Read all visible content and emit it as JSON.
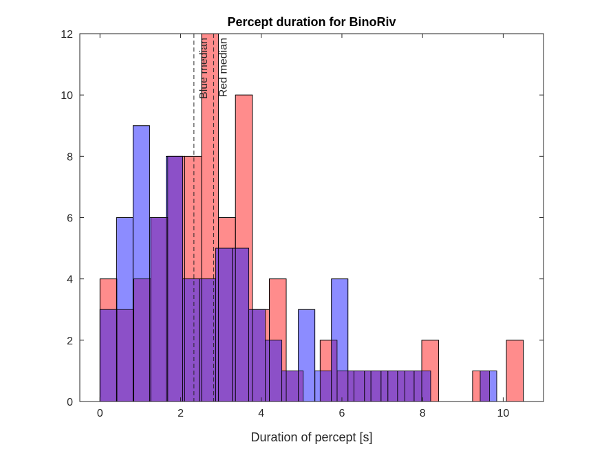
{
  "chart_data": {
    "type": "bar",
    "title": "Percept duration for BinoRiv",
    "xlabel": "Duration of percept [s]",
    "ylabel": "",
    "xlim": [
      -0.5,
      11
    ],
    "ylim": [
      0,
      12
    ],
    "xticks": [
      "0",
      "2",
      "4",
      "6",
      "8",
      "10"
    ],
    "yticks": [
      "0",
      "2",
      "4",
      "6",
      "8",
      "10",
      "12"
    ],
    "grid": false,
    "legend": "none",
    "overlap_color": "#8c50c8",
    "series": [
      {
        "color": "#ff8c8c",
        "bins": [
          {
            "x0": 0.0,
            "x1": 0.42,
            "count": 4
          },
          {
            "x0": 0.42,
            "x1": 0.84,
            "count": 3
          },
          {
            "x0": 0.84,
            "x1": 1.26,
            "count": 4
          },
          {
            "x0": 1.26,
            "x1": 1.68,
            "count": 6
          },
          {
            "x0": 1.68,
            "x1": 2.1,
            "count": 8
          },
          {
            "x0": 2.1,
            "x1": 2.52,
            "count": 8
          },
          {
            "x0": 2.52,
            "x1": 2.94,
            "count": 12
          },
          {
            "x0": 2.94,
            "x1": 3.36,
            "count": 6
          },
          {
            "x0": 3.36,
            "x1": 3.78,
            "count": 10
          },
          {
            "x0": 3.78,
            "x1": 4.2,
            "count": 3
          },
          {
            "x0": 4.2,
            "x1": 4.62,
            "count": 4
          },
          {
            "x0": 4.62,
            "x1": 5.04,
            "count": 1
          },
          {
            "x0": 5.46,
            "x1": 5.88,
            "count": 2
          },
          {
            "x0": 5.88,
            "x1": 6.3,
            "count": 1
          },
          {
            "x0": 6.3,
            "x1": 6.72,
            "count": 1
          },
          {
            "x0": 6.72,
            "x1": 7.14,
            "count": 1
          },
          {
            "x0": 7.14,
            "x1": 7.56,
            "count": 1
          },
          {
            "x0": 7.56,
            "x1": 7.98,
            "count": 1
          },
          {
            "x0": 7.98,
            "x1": 8.4,
            "count": 2
          },
          {
            "x0": 9.24,
            "x1": 9.66,
            "count": 1
          },
          {
            "x0": 10.08,
            "x1": 10.5,
            "count": 2
          }
        ]
      },
      {
        "color": "#8c8cff",
        "bins": [
          {
            "x0": 0.0,
            "x1": 0.41,
            "count": 3
          },
          {
            "x0": 0.41,
            "x1": 0.82,
            "count": 6
          },
          {
            "x0": 0.82,
            "x1": 1.23,
            "count": 9
          },
          {
            "x0": 1.23,
            "x1": 1.64,
            "count": 6
          },
          {
            "x0": 1.64,
            "x1": 2.05,
            "count": 8
          },
          {
            "x0": 2.05,
            "x1": 2.46,
            "count": 4
          },
          {
            "x0": 2.46,
            "x1": 2.87,
            "count": 4
          },
          {
            "x0": 2.87,
            "x1": 3.28,
            "count": 5
          },
          {
            "x0": 3.28,
            "x1": 3.69,
            "count": 5
          },
          {
            "x0": 3.69,
            "x1": 4.1,
            "count": 3
          },
          {
            "x0": 4.1,
            "x1": 4.51,
            "count": 2
          },
          {
            "x0": 4.51,
            "x1": 4.92,
            "count": 1
          },
          {
            "x0": 4.92,
            "x1": 5.33,
            "count": 3
          },
          {
            "x0": 5.33,
            "x1": 5.74,
            "count": 1
          },
          {
            "x0": 5.74,
            "x1": 6.15,
            "count": 4
          },
          {
            "x0": 6.15,
            "x1": 6.56,
            "count": 1
          },
          {
            "x0": 6.56,
            "x1": 6.97,
            "count": 1
          },
          {
            "x0": 6.97,
            "x1": 7.38,
            "count": 1
          },
          {
            "x0": 7.38,
            "x1": 7.79,
            "count": 1
          },
          {
            "x0": 7.79,
            "x1": 8.2,
            "count": 1
          },
          {
            "x0": 9.43,
            "x1": 9.84,
            "count": 1
          }
        ]
      }
    ],
    "medians": [
      {
        "label": "Blue median",
        "x": 2.33
      },
      {
        "label": "Red median",
        "x": 2.82
      }
    ]
  }
}
